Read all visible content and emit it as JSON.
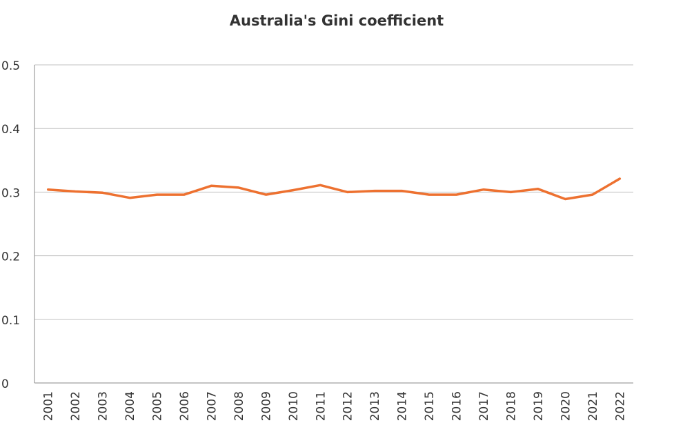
{
  "chart_data": {
    "type": "line",
    "title": "Australia's Gini coefficient",
    "xlabel": "",
    "ylabel": "",
    "ylim": [
      0,
      0.5
    ],
    "yticks": [
      "0",
      "0.1",
      "0.2",
      "0.3",
      "0.4",
      "0.5"
    ],
    "grid": true,
    "categories": [
      "2001",
      "2002",
      "2003",
      "2004",
      "2005",
      "2006",
      "2007",
      "2008",
      "2009",
      "2010",
      "2011",
      "2012",
      "2013",
      "2014",
      "2015",
      "2016",
      "2017",
      "2018",
      "2019",
      "2020",
      "2021",
      "2022"
    ],
    "series": [
      {
        "name": "Gini coefficient",
        "color": "#ed7130",
        "values": [
          0.304,
          0.301,
          0.299,
          0.291,
          0.296,
          0.296,
          0.31,
          0.307,
          0.296,
          0.303,
          0.311,
          0.3,
          0.302,
          0.302,
          0.296,
          0.296,
          0.304,
          0.3,
          0.305,
          0.289,
          0.296,
          0.321
        ]
      }
    ]
  }
}
